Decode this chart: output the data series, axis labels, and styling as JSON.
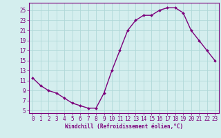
{
  "x": [
    0,
    1,
    2,
    3,
    4,
    5,
    6,
    7,
    8,
    9,
    10,
    11,
    12,
    13,
    14,
    15,
    16,
    17,
    18,
    19,
    20,
    21,
    22,
    23
  ],
  "y": [
    11.5,
    10.0,
    9.0,
    8.5,
    7.5,
    6.5,
    6.0,
    5.5,
    5.5,
    8.5,
    13.0,
    17.0,
    21.0,
    23.0,
    24.0,
    24.0,
    25.0,
    25.5,
    25.5,
    24.5,
    21.0,
    19.0,
    17.0,
    15.0
  ],
  "line_color": "#7B007B",
  "marker": "D",
  "marker_size": 2.0,
  "line_width": 1.0,
  "bg_color": "#d4eeee",
  "grid_color": "#b0d8d8",
  "xlim": [
    -0.5,
    23.5
  ],
  "ylim": [
    4.5,
    26.5
  ],
  "yticks": [
    5,
    7,
    9,
    11,
    13,
    15,
    17,
    19,
    21,
    23,
    25
  ],
  "xticks": [
    0,
    1,
    2,
    3,
    4,
    5,
    6,
    7,
    8,
    9,
    10,
    11,
    12,
    13,
    14,
    15,
    16,
    17,
    18,
    19,
    20,
    21,
    22,
    23
  ],
  "xlabel": "Windchill (Refroidissement éolien,°C)",
  "xlabel_fontsize": 5.5,
  "tick_fontsize": 5.5,
  "label_color": "#7B007B",
  "spine_color": "#7B007B"
}
